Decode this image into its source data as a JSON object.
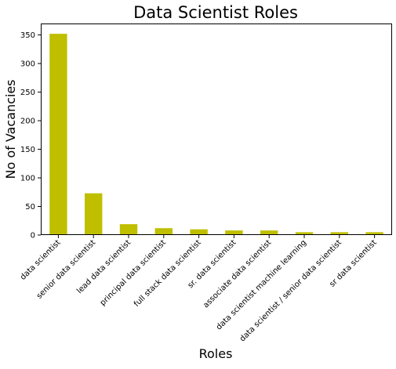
{
  "chart_data": {
    "type": "bar",
    "title": "Data Scientist Roles",
    "xlabel": "Roles",
    "ylabel": "No of Vacancies",
    "categories": [
      "data scientist",
      "senior data scientist",
      "lead data scientist",
      "principal data scientist",
      "full stack data scientist",
      "sr. data scientist",
      "associate data scientist",
      "data scientist machine learning",
      "data scientist / senior data scientist",
      "sr data scientist"
    ],
    "values": [
      352,
      73,
      19,
      12,
      10,
      8,
      8,
      5,
      5,
      5
    ],
    "ylim": [
      0,
      370
    ],
    "yticks": [
      0,
      50,
      100,
      150,
      200,
      250,
      300,
      350
    ],
    "bar_color": "#bfbf00",
    "grid": false,
    "legend": "none"
  }
}
